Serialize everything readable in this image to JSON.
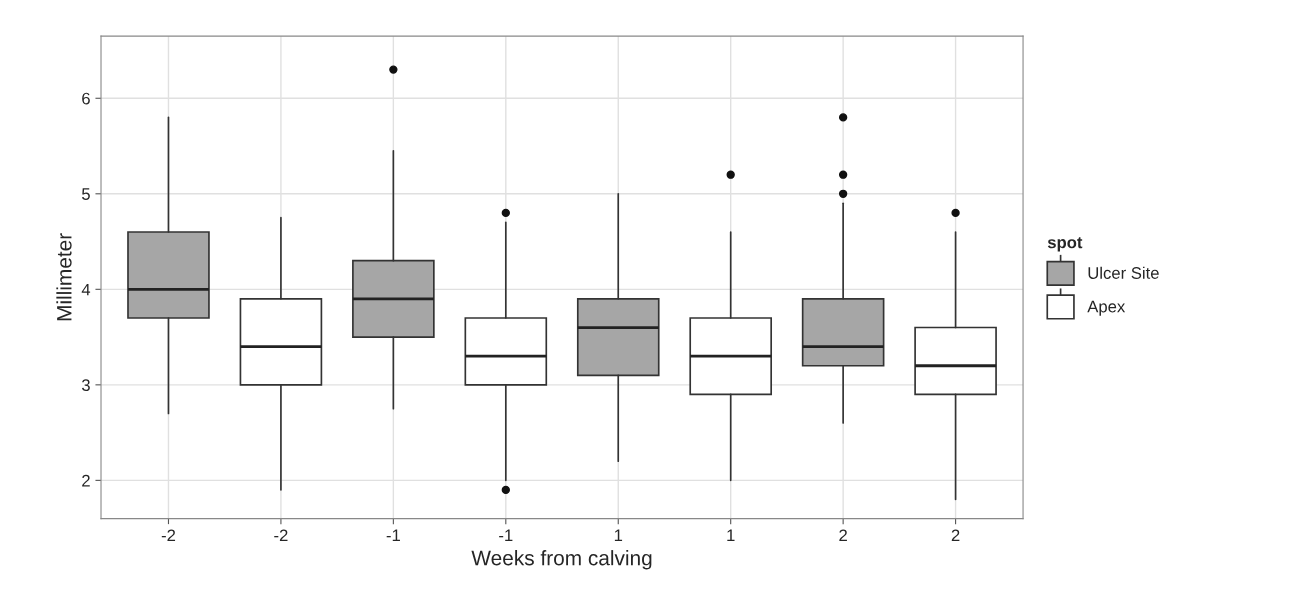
{
  "chart_data": {
    "type": "box",
    "xlabel": "Weeks from calving",
    "ylabel": "Millimeter",
    "legend_title": "spot",
    "categories": [
      "-2",
      "-2",
      "-1",
      "-1",
      "1",
      "1",
      "2",
      "2"
    ],
    "ylim": [
      1.6,
      6.65
    ],
    "yticks": [
      2,
      3,
      4,
      5,
      6
    ],
    "grid": true,
    "legend": "right",
    "series": [
      {
        "name": "Ulcer Site",
        "color": "#a6a6a6",
        "boxes": [
          {
            "low": 2.7,
            "q1": 3.7,
            "median": 4.0,
            "q3": 4.6,
            "high": 5.8
          },
          null,
          {
            "low": 2.75,
            "q1": 3.5,
            "median": 3.9,
            "q3": 4.3,
            "high": 5.45,
            "outliers": [
              6.3
            ]
          },
          null,
          {
            "low": 2.2,
            "q1": 3.1,
            "median": 3.6,
            "q3": 3.9,
            "high": 5.0
          },
          null,
          {
            "low": 2.6,
            "q1": 3.2,
            "median": 3.4,
            "q3": 3.9,
            "high": 4.9,
            "outliers": [
              5.0,
              5.2,
              5.8
            ]
          },
          null
        ]
      },
      {
        "name": "Apex",
        "color": "#ffffff",
        "boxes": [
          null,
          {
            "low": 1.9,
            "q1": 3.0,
            "median": 3.4,
            "q3": 3.9,
            "high": 4.75
          },
          null,
          {
            "low": 2.0,
            "q1": 3.0,
            "median": 3.3,
            "q3": 3.7,
            "high": 4.7,
            "outliers": [
              4.8,
              1.9
            ]
          },
          null,
          {
            "low": 2.0,
            "q1": 2.9,
            "median": 3.3,
            "q3": 3.7,
            "high": 4.6,
            "outliers": [
              5.2
            ]
          },
          null,
          {
            "low": 1.8,
            "q1": 2.9,
            "median": 3.2,
            "q3": 3.6,
            "high": 4.6,
            "outliers": [
              4.8
            ]
          }
        ]
      }
    ]
  }
}
